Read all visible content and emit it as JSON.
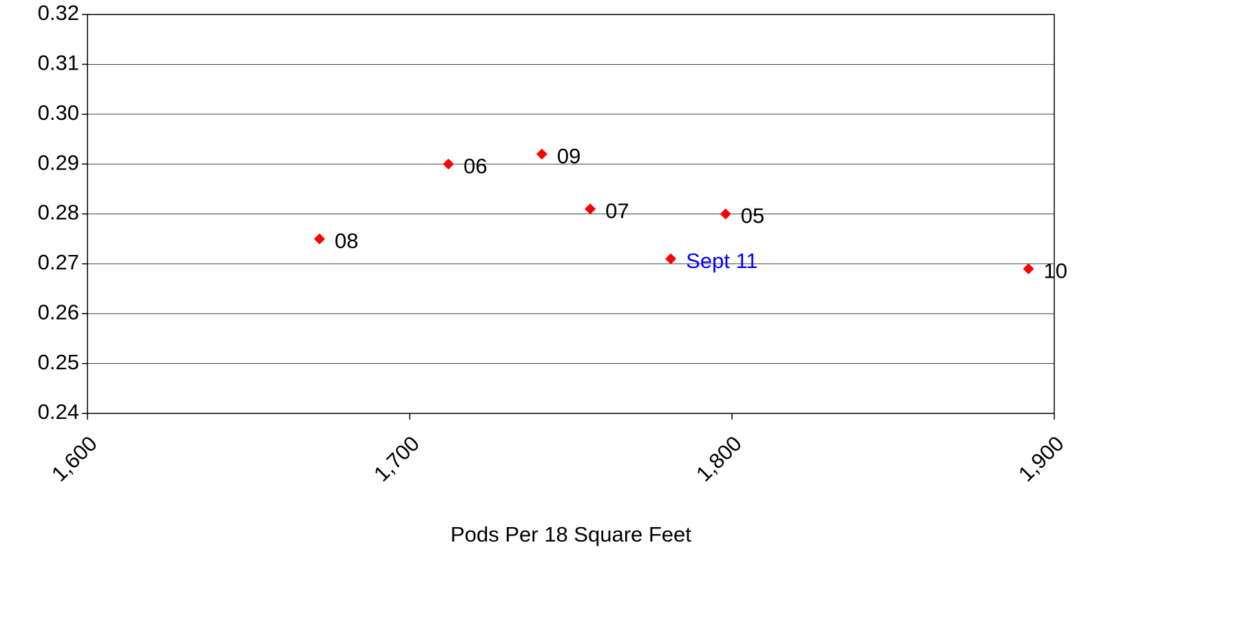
{
  "chart_data": {
    "type": "scatter",
    "x_label": "Pods Per 18 Square Feet",
    "x": [
      1672,
      1712,
      1741,
      1756,
      1798,
      1781,
      1892
    ],
    "values": [
      0.275,
      0.29,
      0.292,
      0.281,
      0.28,
      0.271,
      0.269
    ],
    "labels": [
      "08",
      "06",
      "09",
      "07",
      "05",
      "Sept 11",
      "10"
    ],
    "label_colors": [
      "#000000",
      "#000000",
      "#000000",
      "#000000",
      "#000000",
      "#0000ff",
      "#000000"
    ],
    "color": "#ff0000",
    "xlim": [
      1600,
      1900
    ],
    "xticks": [
      {
        "value": 1600,
        "label": "1,600"
      },
      {
        "value": 1700,
        "label": "1,700"
      },
      {
        "value": 1800,
        "label": "1,800"
      },
      {
        "value": 1900,
        "label": "1,900"
      }
    ],
    "ylim": [
      0.24,
      0.32
    ],
    "yticks": [
      0.24,
      0.25,
      0.26,
      0.27,
      0.28,
      0.29,
      {
        "value": 0.3,
        "label": "0.30"
      },
      0.31,
      0.32
    ],
    "grid": true
  }
}
